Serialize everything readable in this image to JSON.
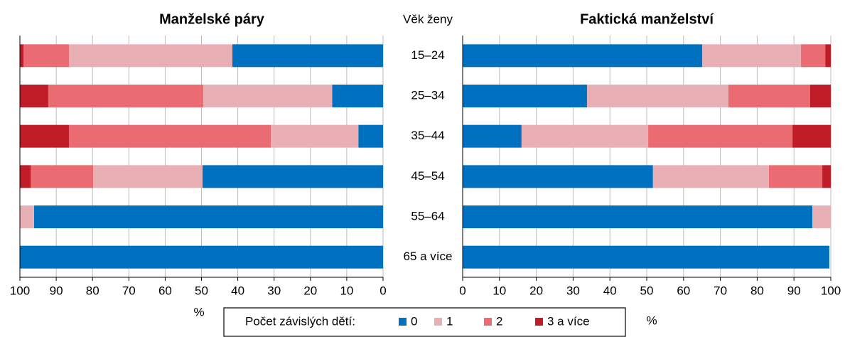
{
  "chart_data": [
    {
      "type": "bar",
      "orientation": "horizontal",
      "stacked": true,
      "reversed": true,
      "title": "Manželské páry",
      "category_label": "Věk ženy",
      "categories": [
        "15–24",
        "25–34",
        "35–44",
        "45–54",
        "55–64",
        "65 a více"
      ],
      "xlabel": "%",
      "xlim": [
        0,
        100
      ],
      "xticks": [
        0,
        10,
        20,
        30,
        40,
        50,
        60,
        70,
        80,
        90,
        100
      ],
      "grid": true,
      "legend_title": "Počet závislých dětí:",
      "series": [
        {
          "name": "0",
          "color": "#0070c0",
          "values": [
            41.5,
            14,
            6.8,
            49.7,
            96.1,
            100
          ]
        },
        {
          "name": "1",
          "color": "#e8b0b5",
          "values": [
            45,
            35.5,
            24.1,
            30.1,
            3.9,
            0
          ]
        },
        {
          "name": "2",
          "color": "#eb6b72",
          "values": [
            12.5,
            42.7,
            55.6,
            17.2,
            0,
            0
          ]
        },
        {
          "name": "3 a více",
          "color": "#c01c28",
          "values": [
            1,
            7.8,
            13.5,
            3,
            0,
            0
          ]
        }
      ]
    },
    {
      "type": "bar",
      "orientation": "horizontal",
      "stacked": true,
      "reversed": false,
      "title": "Faktická manželství",
      "xlabel": "%",
      "xlim": [
        0,
        100
      ],
      "xticks": [
        0,
        10,
        20,
        30,
        40,
        50,
        60,
        70,
        80,
        90,
        100
      ],
      "grid": true,
      "series": [
        {
          "name": "0",
          "color": "#0070c0",
          "values": [
            65.1,
            33.8,
            16,
            51.7,
            95,
            99.6
          ]
        },
        {
          "name": "1",
          "color": "#e8b0b5",
          "values": [
            26.8,
            38.4,
            34.4,
            31.5,
            5,
            0
          ]
        },
        {
          "name": "2",
          "color": "#eb6b72",
          "values": [
            6.6,
            22.2,
            39.2,
            14.5,
            0,
            0
          ]
        },
        {
          "name": "3 a více",
          "color": "#c01c28",
          "values": [
            1.5,
            5.6,
            10.4,
            2.3,
            0,
            0
          ]
        }
      ]
    }
  ]
}
